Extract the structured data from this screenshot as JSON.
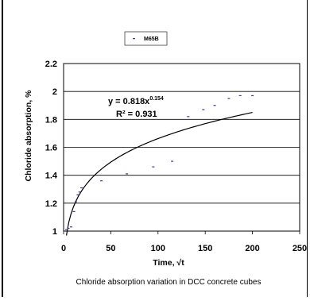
{
  "chart_data": {
    "type": "scatter",
    "title": "",
    "xlabel": "Time, √t",
    "ylabel": "Chloride absorption, %",
    "caption": "Chloride absorption variation in DCC concrete cubes",
    "xlim": [
      0,
      250
    ],
    "ylim": [
      1,
      2.2
    ],
    "xticks": [
      "0",
      "50",
      "100",
      "150",
      "200",
      "250"
    ],
    "yticks": [
      "1",
      "1.2",
      "1.4",
      "1.6",
      "1.8",
      "2",
      "2.2"
    ],
    "grid": "horizontal",
    "legend_position": "top-center",
    "series": [
      {
        "name": "M65B",
        "marker_color": "#3a3a8c",
        "x": [
          3,
          5,
          8,
          11,
          13,
          15,
          17,
          19,
          40,
          67,
          95,
          115,
          132,
          148,
          160,
          175,
          187,
          200
        ],
        "y": [
          1.01,
          1.02,
          1.03,
          1.14,
          1.21,
          1.26,
          1.28,
          1.31,
          1.36,
          1.41,
          1.46,
          1.5,
          1.82,
          1.87,
          1.9,
          1.95,
          1.97,
          1.97
        ]
      }
    ],
    "trendline": {
      "type": "power",
      "a": 0.818,
      "b": 0.154,
      "x_range": [
        3,
        200
      ],
      "equation_text": "y = 0.818x",
      "exponent_text": "0.154",
      "r2_text": "R² = 0.931",
      "color": "#000000"
    }
  }
}
